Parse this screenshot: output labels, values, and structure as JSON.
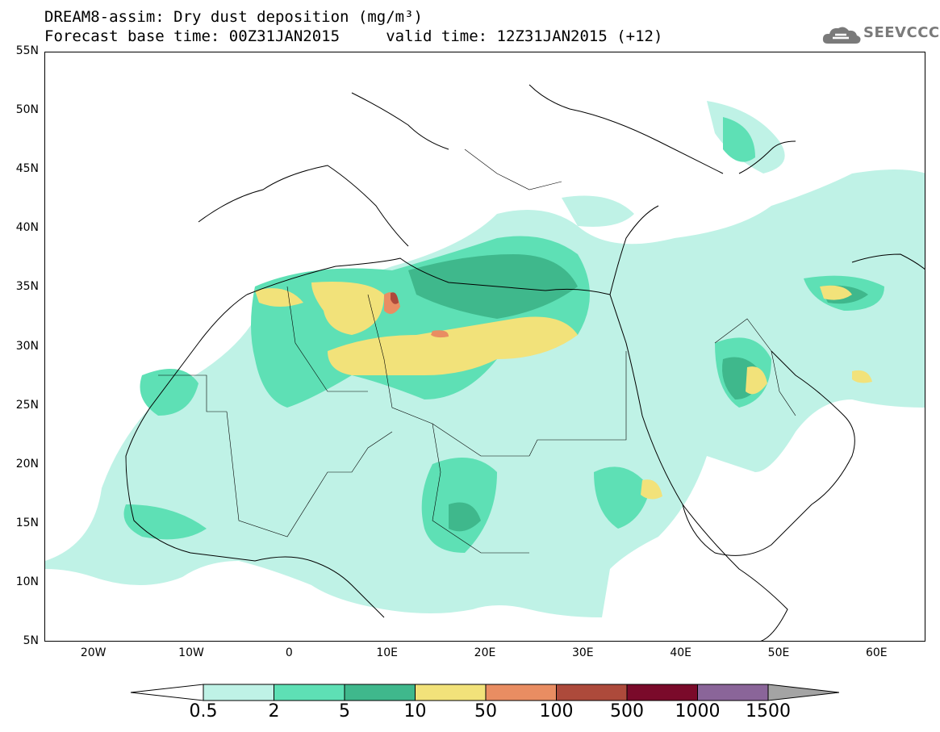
{
  "title": {
    "line1": "DREAM8-assim: Dry dust deposition (mg/m³)",
    "line2": "Forecast base time: 00Z31JAN2015     valid time: 12Z31JAN2015 (+12)"
  },
  "logo": {
    "text": "SEEVCCC",
    "icon": "cloud-icon"
  },
  "map": {
    "projection": "lat-lon",
    "lon_range": [
      -25,
      65
    ],
    "lat_range": [
      5,
      55
    ],
    "lat_ticks": [
      "55N",
      "50N",
      "45N",
      "40N",
      "35N",
      "30N",
      "25N",
      "20N",
      "15N",
      "10N",
      "5N"
    ],
    "lon_ticks": [
      "20W",
      "10W",
      "0",
      "10E",
      "20E",
      "30E",
      "40E",
      "50E",
      "60E"
    ]
  },
  "legend": {
    "levels": [
      "0.5",
      "2",
      "5",
      "10",
      "50",
      "100",
      "500",
      "1000",
      "1500"
    ],
    "colors": [
      "#bff2e6",
      "#5ee0b5",
      "#3fb88c",
      "#f2e27a",
      "#e98d62",
      "#ad4a3b",
      "#7a0a2a",
      "#8a6599",
      "#a4a4a4"
    ],
    "under_color": "#ffffff",
    "over_color": "#a4a4a4"
  }
}
